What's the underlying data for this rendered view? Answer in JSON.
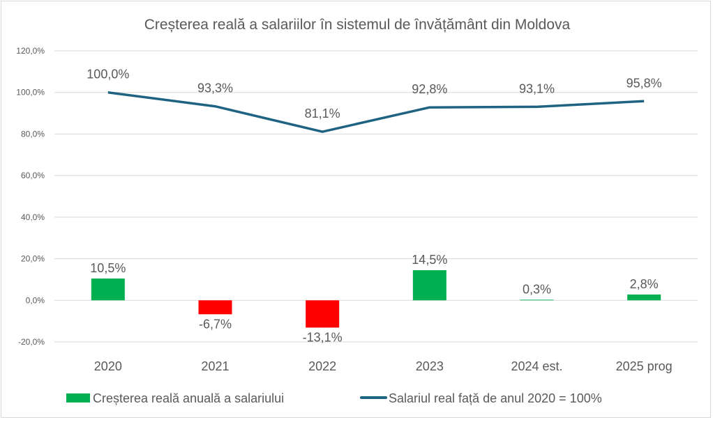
{
  "chart_data": {
    "type": "bar+line",
    "title": "Creșterea reală a salariilor în sistemul de învățământ din Moldova",
    "categories": [
      "2020",
      "2021",
      "2022",
      "2023",
      "2024 est.",
      "2025 prog"
    ],
    "ylim": [
      -20,
      120
    ],
    "yticks": [
      -20,
      0,
      20,
      40,
      60,
      80,
      100,
      120
    ],
    "ytick_labels": [
      "-20,0%",
      "0,0%",
      "20,0%",
      "40,0%",
      "60,0%",
      "80,0%",
      "100,0%",
      "120,0%"
    ],
    "grid": true,
    "legend_position": "bottom",
    "series": [
      {
        "name": "Creșterea reală anuală a salariului",
        "type": "bar",
        "values": [
          10.5,
          -6.7,
          -13.1,
          14.5,
          0.3,
          2.8
        ],
        "labels": [
          "10,5%",
          "-6,7%",
          "-13,1%",
          "14,5%",
          "0,3%",
          "2,8%"
        ],
        "color_positive": "#00B050",
        "color_negative": "#FF0000"
      },
      {
        "name": "Salariul real față de anul 2020 = 100%",
        "type": "line",
        "values": [
          100.0,
          93.3,
          81.1,
          92.8,
          93.1,
          95.8
        ],
        "labels": [
          "100,0%",
          "93,3%",
          "81,1%",
          "92,8%",
          "93,1%",
          "95,8%"
        ],
        "color": "#1F6382"
      }
    ]
  }
}
